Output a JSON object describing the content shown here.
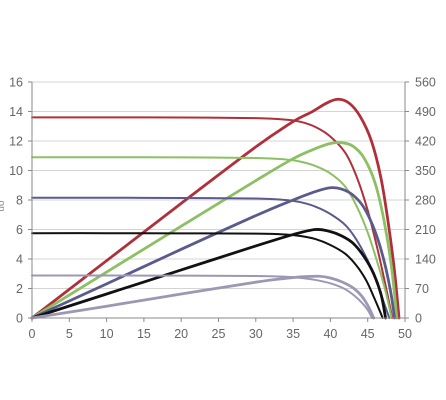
{
  "chart_data": {
    "type": "line",
    "x_ticks": [
      "0",
      "5",
      "10",
      "15",
      "20",
      "25",
      "30",
      "35",
      "40",
      "45",
      "50"
    ],
    "y_left_ticks": [
      "0",
      "2",
      "4",
      "6",
      "8",
      "10",
      "12",
      "14",
      "16"
    ],
    "y_right_ticks": [
      "0",
      "70",
      "140",
      "210",
      "280",
      "350",
      "420",
      "490",
      "560"
    ],
    "y_left_label_partial": "uo",
    "xlim": [
      0,
      50
    ],
    "ylim_left": [
      0,
      16
    ],
    "ylim_right": [
      0,
      560
    ],
    "grid": "horizontal",
    "series": [
      {
        "color": "#b0303a",
        "axis": "left",
        "values": [
          [
            0,
            13.6
          ],
          [
            10,
            13.6
          ],
          [
            20,
            13.59
          ],
          [
            30,
            13.55
          ],
          [
            34,
            13.45
          ],
          [
            36,
            13.3
          ],
          [
            38,
            12.95
          ],
          [
            40,
            12.3
          ],
          [
            42,
            11.2
          ],
          [
            43.5,
            9.6
          ],
          [
            45,
            7.3
          ],
          [
            46.3,
            4.7
          ],
          [
            47.4,
            2.2
          ],
          [
            48.3,
            0
          ]
        ]
      },
      {
        "color": "#b0303a",
        "axis": "right",
        "values": [
          [
            0,
            0
          ],
          [
            10,
            136
          ],
          [
            20,
            272
          ],
          [
            30,
            406
          ],
          [
            35,
            466
          ],
          [
            37.5,
            489
          ],
          [
            39.5,
            510
          ],
          [
            41,
            519
          ],
          [
            42.5,
            510
          ],
          [
            44,
            478
          ],
          [
            45.5,
            420
          ],
          [
            46.8,
            330
          ],
          [
            47.8,
            220
          ],
          [
            48.6,
            110
          ],
          [
            49.2,
            0
          ]
        ]
      },
      {
        "color": "#8cc063",
        "axis": "left",
        "values": [
          [
            0,
            10.9
          ],
          [
            10,
            10.9
          ],
          [
            20,
            10.89
          ],
          [
            30,
            10.85
          ],
          [
            34,
            10.75
          ],
          [
            36,
            10.6
          ],
          [
            38,
            10.3
          ],
          [
            40,
            9.8
          ],
          [
            42,
            8.9
          ],
          [
            43.5,
            7.6
          ],
          [
            45,
            5.8
          ],
          [
            46.4,
            3.6
          ],
          [
            47.5,
            1.6
          ],
          [
            48.2,
            0
          ]
        ]
      },
      {
        "color": "#8cc063",
        "axis": "right",
        "values": [
          [
            0,
            0
          ],
          [
            10,
            109
          ],
          [
            20,
            218
          ],
          [
            30,
            326
          ],
          [
            35,
            378
          ],
          [
            38,
            402
          ],
          [
            40,
            414
          ],
          [
            41.5,
            416
          ],
          [
            43,
            408
          ],
          [
            44.5,
            380
          ],
          [
            46,
            320
          ],
          [
            47.2,
            230
          ],
          [
            48.2,
            120
          ],
          [
            48.9,
            0
          ]
        ]
      },
      {
        "color": "#5a5b8c",
        "axis": "left",
        "values": [
          [
            0,
            8.15
          ],
          [
            10,
            8.15
          ],
          [
            20,
            8.14
          ],
          [
            30,
            8.1
          ],
          [
            34,
            8.0
          ],
          [
            36,
            7.85
          ],
          [
            38,
            7.55
          ],
          [
            40,
            7.05
          ],
          [
            42,
            6.3
          ],
          [
            43.5,
            5.3
          ],
          [
            45,
            3.9
          ],
          [
            46.3,
            2.3
          ],
          [
            47.2,
            1.0
          ],
          [
            47.9,
            0
          ]
        ]
      },
      {
        "color": "#5a5b8c",
        "axis": "right",
        "values": [
          [
            0,
            0
          ],
          [
            10,
            81
          ],
          [
            20,
            163
          ],
          [
            30,
            243
          ],
          [
            35,
            280
          ],
          [
            38,
            300
          ],
          [
            40,
            309
          ],
          [
            41.5,
            306
          ],
          [
            43,
            292
          ],
          [
            44.5,
            262
          ],
          [
            46,
            205
          ],
          [
            47.2,
            135
          ],
          [
            48.1,
            60
          ],
          [
            48.6,
            0
          ]
        ]
      },
      {
        "color": "#111111",
        "axis": "left",
        "values": [
          [
            0,
            5.75
          ],
          [
            10,
            5.75
          ],
          [
            20,
            5.74
          ],
          [
            30,
            5.72
          ],
          [
            34,
            5.66
          ],
          [
            36,
            5.56
          ],
          [
            38,
            5.35
          ],
          [
            40,
            4.95
          ],
          [
            42,
            4.35
          ],
          [
            43.5,
            3.55
          ],
          [
            44.8,
            2.55
          ],
          [
            45.8,
            1.45
          ],
          [
            46.6,
            0.5
          ],
          [
            47.0,
            0
          ]
        ]
      },
      {
        "color": "#111111",
        "axis": "right",
        "values": [
          [
            0,
            0
          ],
          [
            10,
            57
          ],
          [
            20,
            114
          ],
          [
            30,
            171
          ],
          [
            35,
            198
          ],
          [
            38,
            210
          ],
          [
            40,
            205
          ],
          [
            41.5,
            195
          ],
          [
            43,
            178
          ],
          [
            44.5,
            146
          ],
          [
            45.8,
            105
          ],
          [
            46.8,
            55
          ],
          [
            47.4,
            0
          ]
        ]
      },
      {
        "color": "#9c98b4",
        "axis": "left",
        "values": [
          [
            0,
            2.88
          ],
          [
            10,
            2.88
          ],
          [
            20,
            2.87
          ],
          [
            30,
            2.85
          ],
          [
            34,
            2.8
          ],
          [
            36,
            2.72
          ],
          [
            38,
            2.58
          ],
          [
            40,
            2.35
          ],
          [
            41.8,
            2.0
          ],
          [
            43,
            1.6
          ],
          [
            44.2,
            1.05
          ],
          [
            45.0,
            0.55
          ],
          [
            45.6,
            0
          ]
        ]
      },
      {
        "color": "#9c98b4",
        "axis": "right",
        "values": [
          [
            0,
            0
          ],
          [
            10,
            28
          ],
          [
            20,
            57
          ],
          [
            30,
            85
          ],
          [
            34,
            94
          ],
          [
            36.5,
            98
          ],
          [
            38.5,
            99
          ],
          [
            40,
            95
          ],
          [
            41.5,
            86
          ],
          [
            43,
            72
          ],
          [
            44.2,
            52
          ],
          [
            45.1,
            27
          ],
          [
            45.8,
            0
          ]
        ]
      }
    ]
  }
}
